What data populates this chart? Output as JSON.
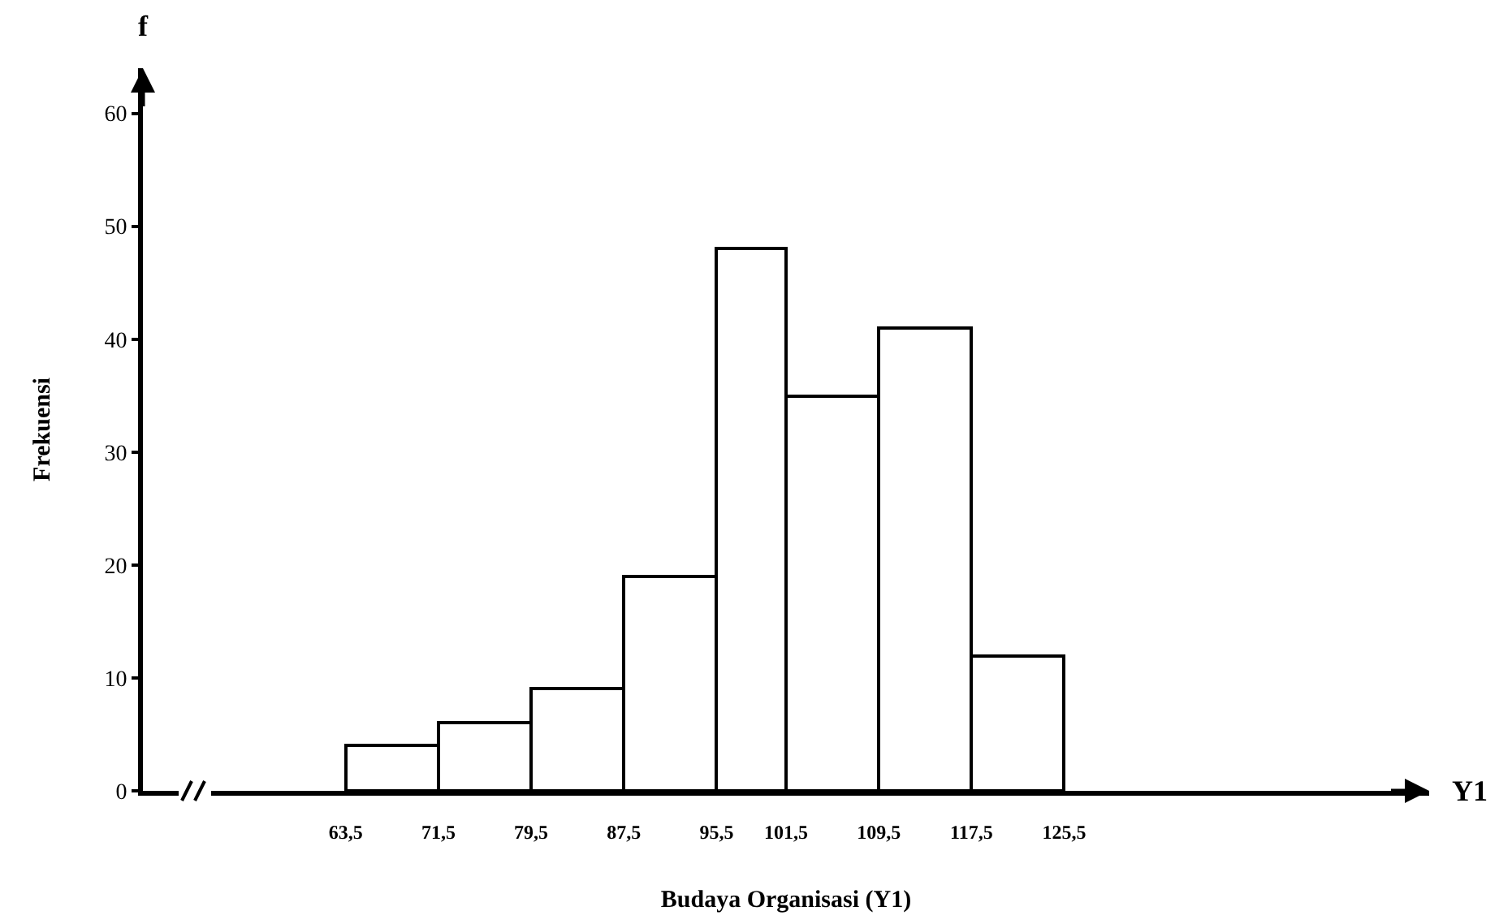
{
  "chart_data": {
    "type": "histogram",
    "xlabel": "Budaya Organisasi (Y1)",
    "ylabel": "Frekuensi",
    "annotations": [
      "f",
      "Y1"
    ],
    "bins": [
      63.5,
      71.5,
      79.5,
      87.5,
      95.5,
      101.5,
      109.5,
      117.5,
      125.5
    ],
    "values": [
      4,
      6,
      9,
      19,
      48,
      35,
      41,
      12
    ],
    "color": "#ffffff",
    "xlim": [
      46,
      157
    ],
    "ylim": [
      0,
      64
    ],
    "xticks": [
      {
        "value": 63.5,
        "label": "63,5"
      },
      {
        "value": 71.5,
        "label": "71,5"
      },
      {
        "value": 79.5,
        "label": "79,5"
      },
      {
        "value": 87.5,
        "label": "87,5"
      },
      {
        "value": 95.5,
        "label": "95,5"
      },
      {
        "value": 101.5,
        "label": "101,5"
      },
      {
        "value": 109.5,
        "label": "109,5"
      },
      {
        "value": 117.5,
        "label": "117,5"
      },
      {
        "value": 125.5,
        "label": "125,5"
      }
    ],
    "yticks": [
      0,
      10,
      20,
      30,
      40,
      50,
      60
    ],
    "grid": false
  }
}
